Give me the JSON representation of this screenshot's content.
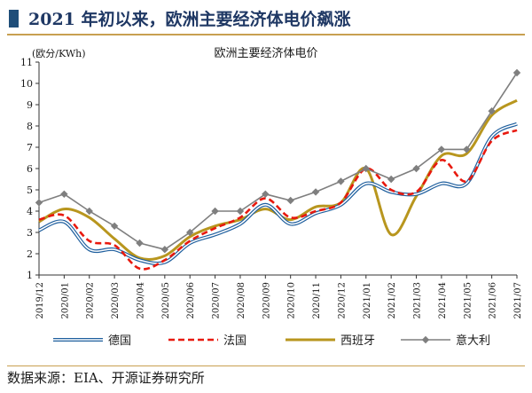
{
  "page_title": "2021 年初以来，欧洲主要经济体电价飙涨",
  "source": "数据来源：EIA、开源证券研究所",
  "colors": {
    "header_marker": "#1f4e79",
    "header_rule": "#c8a050",
    "title_text": "#1f3864"
  },
  "chart_data": {
    "type": "line",
    "title": "欧洲主要经济体电价",
    "ylabel": "(欧分/KWh)",
    "ylim": [
      1,
      11
    ],
    "yticks": [
      1,
      2,
      3,
      4,
      5,
      6,
      7,
      8,
      9,
      10,
      11
    ],
    "grid": false,
    "legend": "bottom",
    "categories": [
      "2019/12",
      "2020/01",
      "2020/02",
      "2020/03",
      "2020/04",
      "2020/05",
      "2020/06",
      "2020/07",
      "2020/08",
      "2020/09",
      "2020/10",
      "2020/11",
      "2020/12",
      "2021/01",
      "2021/02",
      "2021/03",
      "2021/04",
      "2021/05",
      "2021/06",
      "2021/07"
    ],
    "series": [
      {
        "name": "德国",
        "style": "double-blue",
        "color": "#1f5f9e",
        "values": [
          3.1,
          3.5,
          2.2,
          2.2,
          1.7,
          1.6,
          2.5,
          2.9,
          3.4,
          4.3,
          3.4,
          3.9,
          4.3,
          5.3,
          4.9,
          4.8,
          5.3,
          5.3,
          7.5,
          8.1
        ]
      },
      {
        "name": "法国",
        "style": "dashed-red",
        "color": "#e8190e",
        "values": [
          3.6,
          3.8,
          2.6,
          2.4,
          1.3,
          1.7,
          2.6,
          3.2,
          3.7,
          4.6,
          3.7,
          4.0,
          4.4,
          6.0,
          5.0,
          4.9,
          6.4,
          5.4,
          7.3,
          7.8
        ]
      },
      {
        "name": "西班牙",
        "style": "solid-gold",
        "color": "#b8961e",
        "values": [
          3.5,
          4.1,
          3.7,
          2.7,
          1.8,
          1.9,
          2.8,
          3.3,
          3.6,
          4.1,
          3.6,
          4.2,
          4.4,
          6.0,
          2.9,
          4.7,
          6.6,
          6.7,
          8.5,
          9.2
        ]
      },
      {
        "name": "意大利",
        "style": "gray-diamond",
        "color": "#7f7f7f",
        "values": [
          4.4,
          4.8,
          4.0,
          3.3,
          2.5,
          2.2,
          3.0,
          4.0,
          4.0,
          4.8,
          4.5,
          4.9,
          5.4,
          6.0,
          5.5,
          6.0,
          6.9,
          6.9,
          8.7,
          10.5
        ]
      }
    ]
  }
}
